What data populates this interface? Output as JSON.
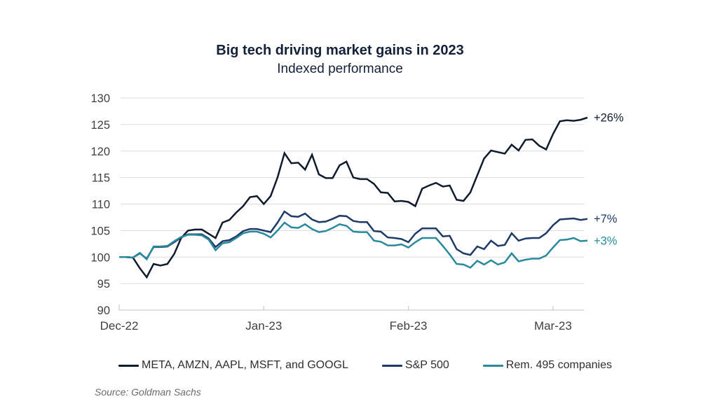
{
  "source_note": "Source: Goldman Sachs",
  "colors": {
    "grid": "#dcdcdc",
    "axis": "#cfcfcf",
    "tick_text": "#3f3f3f",
    "title_text": "#142138"
  },
  "chart_data": {
    "type": "line",
    "title": "Big tech driving market gains in 2023",
    "subtitle": "Indexed performance",
    "xlabel": "",
    "ylabel": "",
    "ylim": [
      90,
      130
    ],
    "y_ticks": [
      90,
      95,
      100,
      105,
      110,
      115,
      120,
      125,
      130
    ],
    "x_range": [
      0,
      68
    ],
    "x_tick_labels": [
      "Dec-22",
      "Jan-23",
      "Feb-23",
      "Mar-23"
    ],
    "x_tick_day_index": [
      0,
      21,
      42,
      63
    ],
    "grid": "horizontal",
    "legend_position": "bottom",
    "series": [
      {
        "name": "META, AMZN, AAPL, MSFT, and GOOGL",
        "color": "#101b2e",
        "end_label": "+26%",
        "values": [
          100,
          100,
          99.9,
          97.9,
          96.2,
          98.7,
          98.4,
          98.7,
          100.6,
          103.6,
          105,
          105.2,
          105.2,
          104.4,
          103.6,
          106.5,
          107,
          108.4,
          109.6,
          111.3,
          111.5,
          110,
          111.5,
          115,
          119.6,
          117.7,
          117.8,
          116.5,
          119.3,
          115.6,
          114.9,
          114.9,
          117.3,
          118,
          115,
          114.7,
          114.7,
          113.8,
          112.2,
          112.1,
          110.5,
          110.6,
          110.4,
          109.6,
          112.9,
          113.5,
          114,
          113.3,
          113.5,
          110.8,
          110.6,
          112.2,
          115.4,
          118.6,
          120.1,
          119.8,
          119.5,
          121.2,
          120.1,
          122.1,
          122.2,
          121,
          120.3,
          123.2,
          125.6,
          125.8,
          125.7,
          125.9,
          126.3
        ]
      },
      {
        "name": "S&P 500",
        "color": "#1e3a68",
        "end_label": "+7%",
        "values": [
          100,
          100,
          99.9,
          100.7,
          99.7,
          101.9,
          101.9,
          102,
          102.8,
          103.7,
          104.3,
          104.3,
          104.3,
          103.5,
          101.9,
          103,
          103.2,
          103.9,
          104.9,
          105.3,
          105.3,
          105,
          104.7,
          106.5,
          108.6,
          107.7,
          107.6,
          108.2,
          107.1,
          106.6,
          106.7,
          107.2,
          107.8,
          107.7,
          106.8,
          106.6,
          106.6,
          104.9,
          104.8,
          103.7,
          103.6,
          103.4,
          102.8,
          104.4,
          105.4,
          105.4,
          105.4,
          103.9,
          104,
          101.5,
          100.7,
          100.4,
          102,
          101.5,
          103.1,
          102.1,
          102.3,
          104.5,
          103.1,
          103.5,
          103.6,
          103.6,
          104.5,
          106,
          107.1,
          107.2,
          107.3,
          107,
          107.2
        ]
      },
      {
        "name": "Rem. 495 companies",
        "color": "#2a8a9d",
        "end_label": "+3%",
        "values": [
          100,
          100,
          99.9,
          100.8,
          99.6,
          102,
          102,
          102.1,
          103,
          103.8,
          104.2,
          104.2,
          104.1,
          103.3,
          101.3,
          102.6,
          102.8,
          103.6,
          104.5,
          104.8,
          104.8,
          104.4,
          103.7,
          105,
          106.5,
          105.6,
          105.5,
          106.2,
          105.3,
          104.7,
          104.9,
          105.5,
          106.2,
          105.9,
          104.8,
          104.7,
          104.7,
          103.1,
          102.9,
          102.2,
          102.2,
          102.4,
          101.8,
          102.8,
          103.6,
          103.6,
          103.6,
          102.1,
          100.5,
          98.7,
          98.6,
          98,
          99.3,
          98.6,
          99.4,
          98.6,
          99,
          100.7,
          99.2,
          99.5,
          99.7,
          99.7,
          100.3,
          101.8,
          103.2,
          103.3,
          103.6,
          103,
          103.1
        ]
      }
    ]
  }
}
